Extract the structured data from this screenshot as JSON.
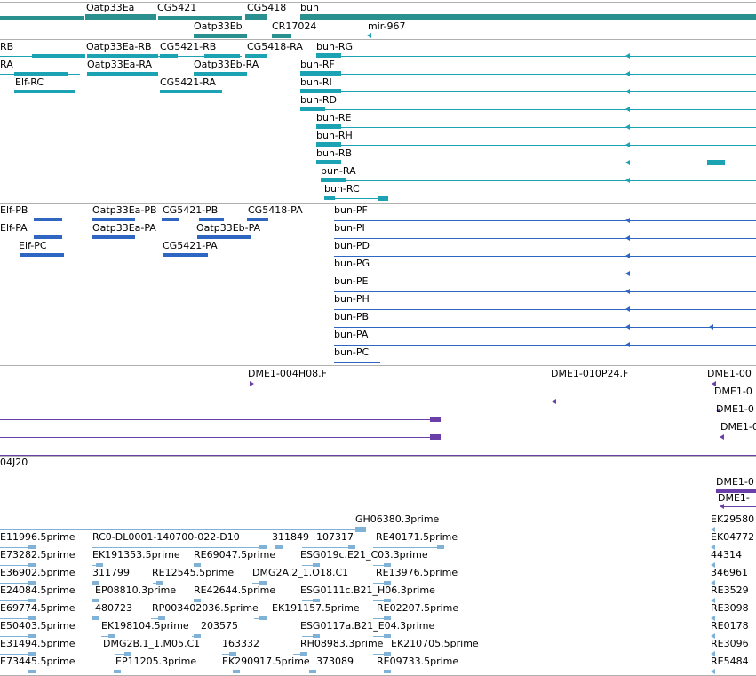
{
  "colors": {
    "gene": "#2a8f8f",
    "transcript": "#1ba2b3",
    "protein": "#2f66c2",
    "clone": "#6a40a8",
    "est": "#7fb2d6",
    "separator": "#b0b0b0"
  },
  "tracks": [
    {
      "name": "gene-track",
      "labels": [
        "Oatp33Ea",
        "CG5421",
        "CG5418",
        "bun",
        "Oatp33Eb",
        "CR17024",
        "mir-967"
      ]
    },
    {
      "name": "transcript-track",
      "labels": [
        "RB",
        "Oatp33Ea-RB",
        "CG5421-RB",
        "CG5418-RA",
        "bun-RG",
        "RA",
        "Oatp33Ea-RA",
        "Oatp33Eb-RA",
        "bun-RF",
        "Elf-RC",
        "CG5421-RA",
        "bun-RI",
        "bun-RD",
        "bun-RE",
        "bun-RH",
        "bun-RB",
        "bun-RA",
        "bun-RC"
      ]
    },
    {
      "name": "protein-track",
      "labels": [
        "Elf-PB",
        "Oatp33Ea-PB",
        "CG5421-PB",
        "CG5418-PA",
        "bun-PF",
        "Elf-PA",
        "Oatp33Ea-PA",
        "Oatp33Eb-PA",
        "bun-PI",
        "Elf-PC",
        "CG5421-PA",
        "bun-PD",
        "bun-PG",
        "bun-PE",
        "bun-PH",
        "bun-PB",
        "bun-PA",
        "bun-PC"
      ]
    },
    {
      "name": "clone-track",
      "labels": [
        "DME1-004H08.F",
        "DME1-010P24.F",
        "DME1-00",
        "DME1-0",
        "DME1-0",
        "DME1-0",
        "04J20",
        "DME1-0",
        "DME1-"
      ]
    },
    {
      "name": "est-track",
      "labels": [
        "GH06380.3prime",
        "EK29580",
        "E11996.5prime",
        "RC0-DL0001-140700-022-D10",
        "311849",
        "107317",
        "RE40171.5prime",
        "EK04772",
        "E73282.5prime",
        "EK191353.5prime",
        "RE69047.5prime",
        "ESG019c.E21_C03.3prime",
        "44314",
        "E36902.5prime",
        "311799",
        "RE12545.5prime",
        "DMG2A.2_1.O18.C1",
        "RE13976.5prime",
        "346961",
        "E24084.5prime",
        "EP08810.3prime",
        "RE42644.5prime",
        "ESG0111c.B21_H06.3prime",
        "RE3529",
        "E69774.5prime",
        "480723",
        "RP003402036.5prime",
        "EK191157.5prime",
        "RE02207.5prime",
        "RE3098",
        "E50403.5prime",
        "EK198104.5prime",
        "203575",
        "ESG0117a.B21_E04.3prime",
        "RE0178",
        "E31494.5prime",
        "DMG2B.1_1.M05.C1",
        "163332",
        "RH08983.3prime",
        "EK210705.5prime",
        "RE3096",
        "E73445.5prime",
        "EP11205.3prime",
        "EK290917.5prime",
        "373089",
        "RE09733.5prime",
        "RE5484"
      ]
    }
  ]
}
